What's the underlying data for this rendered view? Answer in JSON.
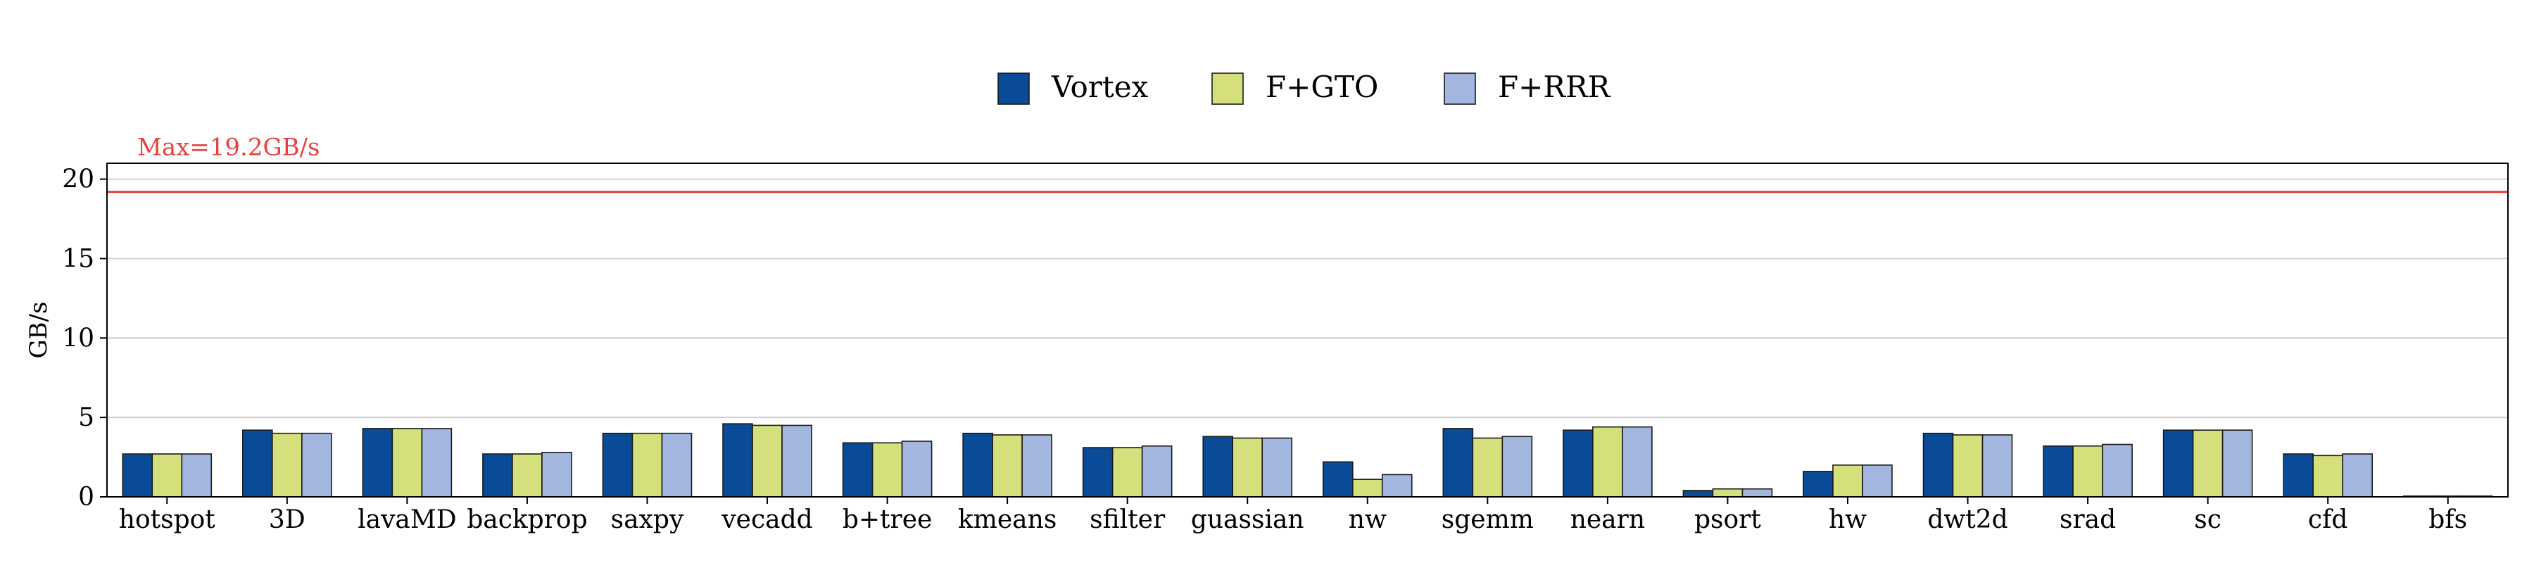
{
  "chart_data": {
    "type": "bar",
    "categories": [
      "hotspot",
      "3D",
      "lavaMD",
      "backprop",
      "saxpy",
      "vecadd",
      "b+tree",
      "kmeans",
      "sfilter",
      "guassian",
      "nw",
      "sgemm",
      "nearn",
      "psort",
      "hw",
      "dwt2d",
      "srad",
      "sc",
      "cfd",
      "bfs"
    ],
    "series": [
      {
        "name": "Vortex",
        "color": "#0a4b97",
        "values": [
          2.7,
          4.2,
          4.3,
          2.7,
          4.0,
          4.6,
          3.4,
          4.0,
          3.1,
          3.8,
          2.2,
          4.3,
          4.2,
          0.4,
          1.6,
          4.0,
          3.2,
          4.2,
          2.7,
          0.05
        ]
      },
      {
        "name": "F+GTO",
        "color": "#d5e07c",
        "values": [
          2.7,
          4.0,
          4.3,
          2.7,
          4.0,
          4.5,
          3.4,
          3.9,
          3.1,
          3.7,
          1.1,
          3.7,
          4.4,
          0.5,
          2.0,
          3.9,
          3.2,
          4.2,
          2.6,
          0.05
        ]
      },
      {
        "name": "F+RRR",
        "color": "#a2b6e0",
        "values": [
          2.7,
          4.0,
          4.3,
          2.8,
          4.0,
          4.5,
          3.5,
          3.9,
          3.2,
          3.7,
          1.4,
          3.8,
          4.4,
          0.5,
          2.0,
          3.9,
          3.3,
          4.2,
          2.7,
          0.05
        ]
      }
    ],
    "xlabel": "",
    "ylabel": "GB/s",
    "ylim": [
      0,
      21
    ],
    "yticks": [
      "0",
      "5",
      "10",
      "15",
      "20"
    ],
    "grid": true,
    "legend_position": "top-center",
    "reference_line": {
      "value": 19.2,
      "label": "Max=19.2GB/s",
      "color": "#e8413f"
    }
  }
}
